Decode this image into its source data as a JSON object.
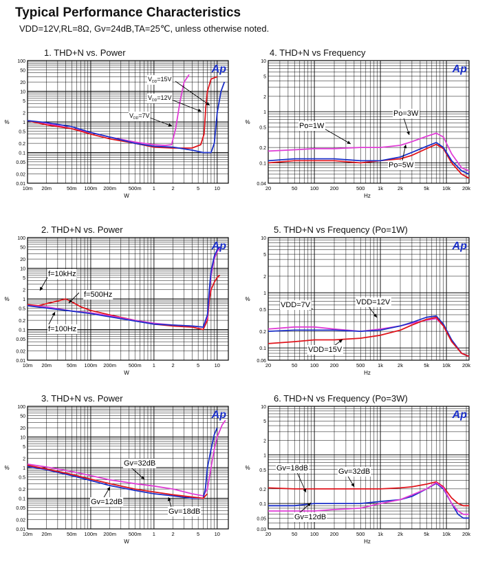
{
  "page": {
    "title": "Typical Performance Characteristics",
    "subtitle": "VDD=12V,RL=8Ω, Gv=24dB,TA=25℃, unless otherwise noted."
  },
  "logo_text": "Ap",
  "colors": {
    "red": "#e0141b",
    "blue": "#1a2fc8",
    "magenta": "#e03cd6",
    "grid": "#000000"
  },
  "charts": [
    {
      "title": "1. THD+N vs. Power",
      "xlabel": "W",
      "ylabel": "%",
      "xticks": [
        "10m",
        "20m",
        "50m",
        "100m",
        "200m",
        "500m",
        "1",
        "2",
        "5",
        "10"
      ],
      "yticks": [
        "100",
        "50",
        "20",
        "10",
        "5",
        "2",
        "1",
        "0.5",
        "0.2",
        "0.1",
        "0.05",
        "0.02",
        "0.01"
      ],
      "annotations": [
        {
          "text": "VDD=15V",
          "sub": "DD",
          "main": "V",
          "rest": "=15V"
        },
        {
          "text": "VDD=12V",
          "sub": "DD",
          "main": "V",
          "rest": "=12V"
        },
        {
          "text": "VDD=7V",
          "sub": "DD",
          "main": "V",
          "rest": "=7V"
        }
      ]
    },
    {
      "title": "4. THD+N vs Frequency",
      "xlabel": "Hz",
      "ylabel": "%",
      "xticks": [
        "20",
        "50",
        "100",
        "200",
        "500",
        "1k",
        "2k",
        "5k",
        "10k",
        "20k"
      ],
      "yticks": [
        "10",
        "5",
        "2",
        "1",
        "0.5",
        "0.2",
        "0.1",
        "0.04"
      ],
      "annotations": [
        {
          "text": "Po=1W"
        },
        {
          "text": "Po=3W"
        },
        {
          "text": "Po=5W"
        }
      ]
    },
    {
      "title": "2. THD+N vs. Power",
      "xlabel": "W",
      "ylabel": "%",
      "xticks": [
        "10m",
        "20m",
        "50m",
        "100m",
        "200m",
        "500m",
        "1",
        "2",
        "5",
        "10"
      ],
      "yticks": [
        "100",
        "50",
        "20",
        "10",
        "5",
        "2",
        "1",
        "0.5",
        "0.2",
        "0.1",
        "0.05",
        "0.02",
        "0.01"
      ],
      "annotations": [
        {
          "text": "f=10kHz"
        },
        {
          "text": "f=500Hz"
        },
        {
          "text": "f=100Hz"
        }
      ]
    },
    {
      "title": "5. THD+N vs Frequency (Po=1W)",
      "xlabel": "Hz",
      "ylabel": "%",
      "xticks": [
        "20",
        "50",
        "100",
        "200",
        "500",
        "1k",
        "2k",
        "5k",
        "10k",
        "20k"
      ],
      "yticks": [
        "10",
        "5",
        "2",
        "1",
        "0.5",
        "0.2",
        "0.1",
        "0.06"
      ],
      "annotations": [
        {
          "text": "VDD=7V"
        },
        {
          "text": "VDD=12V"
        },
        {
          "text": "VDD=15V"
        }
      ]
    },
    {
      "title": "3. THD+N vs. Power",
      "xlabel": "W",
      "ylabel": "%",
      "xticks": [
        "10m",
        "20m",
        "50m",
        "100m",
        "200m",
        "500m",
        "1",
        "2",
        "5",
        "10"
      ],
      "yticks": [
        "100",
        "50",
        "20",
        "10",
        "5",
        "2",
        "1",
        "0.5",
        "0.2",
        "0.1",
        "0.05",
        "0.02",
        "0.01"
      ],
      "annotations": [
        {
          "text": "Gv=32dB"
        },
        {
          "text": "Gv=12dB"
        },
        {
          "text": "Gv=18dB"
        }
      ]
    },
    {
      "title": "6. THD+N vs Frequency (Po=3W)",
      "xlabel": "Hz",
      "ylabel": "%",
      "xticks": [
        "20",
        "50",
        "100",
        "200",
        "500",
        "1k",
        "2k",
        "5k",
        "10k",
        "20k"
      ],
      "yticks": [
        "10",
        "5",
        "2",
        "1",
        "0.5",
        "0.2",
        "0.1",
        "0.05",
        "0.03"
      ],
      "annotations": [
        {
          "text": "Gv=18dB"
        },
        {
          "text": "Gv=32dB"
        },
        {
          "text": "Gv=12dB"
        }
      ]
    }
  ],
  "chart_data": [
    {
      "type": "line",
      "title": "1. THD+N vs. Power",
      "xlabel": "W",
      "ylabel": "%",
      "xscale": "log",
      "yscale": "log",
      "xlim": [
        0.01,
        15
      ],
      "ylim": [
        0.01,
        100
      ],
      "grid": true,
      "series": [
        {
          "name": "VDD=15V",
          "color": "magenta",
          "x": [
            0.01,
            0.02,
            0.05,
            0.1,
            0.2,
            0.5,
            1,
            1.5,
            1.9,
            2.2,
            2.6,
            3,
            3.6
          ],
          "y": [
            1.1,
            0.9,
            0.6,
            0.45,
            0.32,
            0.22,
            0.18,
            0.17,
            0.18,
            0.6,
            5,
            20,
            35
          ]
        },
        {
          "name": "VDD=12V",
          "color": "red",
          "x": [
            0.01,
            0.02,
            0.05,
            0.1,
            0.2,
            0.5,
            1,
            2,
            4,
            5.5,
            6.2,
            6.6,
            7,
            8,
            10
          ],
          "y": [
            1.1,
            0.8,
            0.6,
            0.4,
            0.28,
            0.2,
            0.15,
            0.14,
            0.14,
            0.18,
            0.4,
            3,
            10,
            25,
            30
          ]
        },
        {
          "name": "VDD=7V",
          "color": "blue",
          "x": [
            0.01,
            0.02,
            0.05,
            0.1,
            0.2,
            0.5,
            1,
            2,
            4,
            6,
            8,
            9,
            10,
            11.5,
            13
          ],
          "y": [
            1.1,
            0.95,
            0.7,
            0.45,
            0.32,
            0.2,
            0.16,
            0.15,
            0.12,
            0.1,
            0.1,
            0.2,
            2,
            10,
            20
          ]
        }
      ]
    },
    {
      "type": "line",
      "title": "4. THD+N vs Frequency",
      "xlabel": "Hz",
      "ylabel": "%",
      "xscale": "log",
      "yscale": "log",
      "xlim": [
        20,
        22000
      ],
      "ylim": [
        0.04,
        10
      ],
      "grid": true,
      "series": [
        {
          "name": "Po=1W",
          "color": "magenta",
          "x": [
            20,
            50,
            100,
            200,
            500,
            1000,
            2000,
            3000,
            5000,
            7000,
            9000,
            12000,
            17000,
            22000
          ],
          "y": [
            0.17,
            0.18,
            0.19,
            0.19,
            0.2,
            0.2,
            0.22,
            0.26,
            0.33,
            0.38,
            0.32,
            0.15,
            0.08,
            0.07
          ]
        },
        {
          "name": "Po=3W",
          "color": "red",
          "x": [
            20,
            50,
            100,
            200,
            500,
            1000,
            2000,
            3000,
            5000,
            7000,
            9000,
            12000,
            17000,
            22000
          ],
          "y": [
            0.1,
            0.11,
            0.11,
            0.11,
            0.1,
            0.11,
            0.12,
            0.14,
            0.19,
            0.23,
            0.19,
            0.1,
            0.06,
            0.05
          ]
        },
        {
          "name": "Po=5W",
          "color": "blue",
          "x": [
            20,
            50,
            100,
            200,
            500,
            1000,
            2000,
            3000,
            5000,
            7000,
            9000,
            12000,
            17000,
            22000
          ],
          "y": [
            0.11,
            0.12,
            0.12,
            0.12,
            0.11,
            0.11,
            0.13,
            0.16,
            0.21,
            0.25,
            0.2,
            0.11,
            0.07,
            0.06
          ]
        }
      ]
    },
    {
      "type": "line",
      "title": "2. THD+N vs. Power",
      "xlabel": "W",
      "ylabel": "%",
      "xscale": "log",
      "yscale": "log",
      "xlim": [
        0.01,
        15
      ],
      "ylim": [
        0.01,
        100
      ],
      "grid": true,
      "series": [
        {
          "name": "f=10kHz",
          "color": "red",
          "x": [
            0.01,
            0.015,
            0.02,
            0.03,
            0.04,
            0.05,
            0.07,
            0.1,
            0.2,
            0.5,
            1,
            2,
            4,
            6,
            7,
            7.5,
            8,
            9,
            10,
            11
          ],
          "y": [
            0.65,
            0.6,
            0.7,
            0.85,
            1.0,
            0.8,
            0.55,
            0.42,
            0.3,
            0.2,
            0.15,
            0.13,
            0.12,
            0.1,
            0.2,
            0.9,
            2,
            3.5,
            5,
            6
          ]
        },
        {
          "name": "f=500Hz",
          "color": "magenta",
          "x": [
            0.01,
            0.02,
            0.05,
            0.1,
            0.2,
            0.5,
            1,
            2,
            4,
            6,
            7,
            7.5,
            8,
            9,
            10,
            11
          ],
          "y": [
            0.6,
            0.55,
            0.4,
            0.35,
            0.28,
            0.2,
            0.16,
            0.14,
            0.13,
            0.12,
            0.25,
            1.5,
            6,
            20,
            35,
            45
          ]
        },
        {
          "name": "f=100Hz",
          "color": "blue",
          "x": [
            0.01,
            0.02,
            0.05,
            0.1,
            0.2,
            0.5,
            1,
            2,
            4,
            6,
            7,
            7.5,
            8,
            9,
            10,
            11
          ],
          "y": [
            0.6,
            0.5,
            0.4,
            0.33,
            0.26,
            0.19,
            0.15,
            0.14,
            0.13,
            0.12,
            0.3,
            2,
            8,
            25,
            40,
            50
          ]
        }
      ]
    },
    {
      "type": "line",
      "title": "5. THD+N vs Frequency (Po=1W)",
      "xlabel": "Hz",
      "ylabel": "%",
      "xscale": "log",
      "yscale": "log",
      "xlim": [
        20,
        22000
      ],
      "ylim": [
        0.06,
        10
      ],
      "grid": true,
      "series": [
        {
          "name": "VDD=7V",
          "color": "magenta",
          "x": [
            20,
            50,
            100,
            200,
            500,
            1000,
            2000,
            3000,
            5000,
            7000,
            9000,
            12000,
            17000,
            22000
          ],
          "y": [
            0.22,
            0.24,
            0.24,
            0.22,
            0.2,
            0.22,
            0.25,
            0.28,
            0.32,
            0.34,
            0.25,
            0.14,
            0.08,
            0.07
          ]
        },
        {
          "name": "VDD=12V",
          "color": "blue",
          "x": [
            20,
            50,
            100,
            200,
            500,
            1000,
            2000,
            3000,
            5000,
            7000,
            9000,
            12000,
            17000,
            22000
          ],
          "y": [
            0.2,
            0.21,
            0.21,
            0.21,
            0.2,
            0.21,
            0.25,
            0.29,
            0.36,
            0.38,
            0.27,
            0.14,
            0.08,
            0.07
          ]
        },
        {
          "name": "VDD=15V",
          "color": "red",
          "x": [
            20,
            50,
            100,
            200,
            500,
            1000,
            2000,
            3000,
            5000,
            7000,
            9000,
            12000,
            17000,
            22000
          ],
          "y": [
            0.12,
            0.13,
            0.14,
            0.14,
            0.15,
            0.17,
            0.21,
            0.26,
            0.33,
            0.36,
            0.25,
            0.13,
            0.08,
            0.07
          ]
        }
      ]
    },
    {
      "type": "line",
      "title": "3. THD+N vs. Power",
      "xlabel": "W",
      "ylabel": "%",
      "xscale": "log",
      "yscale": "log",
      "xlim": [
        0.01,
        15
      ],
      "ylim": [
        0.01,
        100
      ],
      "grid": true,
      "series": [
        {
          "name": "Gv=32dB",
          "color": "magenta",
          "x": [
            0.01,
            0.02,
            0.05,
            0.1,
            0.2,
            0.5,
            1,
            2,
            4,
            6,
            7,
            8,
            9,
            10,
            12,
            13.5
          ],
          "y": [
            1.3,
            1.05,
            0.75,
            0.55,
            0.4,
            0.3,
            0.25,
            0.2,
            0.14,
            0.12,
            0.2,
            1,
            4,
            10,
            25,
            35
          ]
        },
        {
          "name": "Gv=12dB",
          "color": "blue",
          "x": [
            0.01,
            0.02,
            0.05,
            0.1,
            0.2,
            0.5,
            1,
            2,
            4,
            6,
            6.5,
            7,
            8,
            9,
            10
          ],
          "y": [
            1.1,
            0.85,
            0.55,
            0.38,
            0.26,
            0.18,
            0.14,
            0.12,
            0.1,
            0.1,
            0.2,
            1,
            4,
            12,
            20
          ]
        },
        {
          "name": "Gv=18dB",
          "color": "red",
          "x": [
            0.01,
            0.02,
            0.05,
            0.1,
            0.2,
            0.5,
            1,
            2,
            4,
            6,
            6.5,
            7
          ],
          "y": [
            1.2,
            0.9,
            0.6,
            0.42,
            0.3,
            0.2,
            0.16,
            0.13,
            0.11,
            0.1,
            0.12,
            0.14
          ]
        }
      ]
    },
    {
      "type": "line",
      "title": "6. THD+N vs Frequency (Po=3W)",
      "xlabel": "Hz",
      "ylabel": "%",
      "xscale": "log",
      "yscale": "log",
      "xlim": [
        20,
        22000
      ],
      "ylim": [
        0.03,
        10
      ],
      "grid": true,
      "series": [
        {
          "name": "Gv=18dB",
          "color": "blue",
          "x": [
            20,
            50,
            100,
            200,
            500,
            1000,
            2000,
            3000,
            5000,
            7000,
            9000,
            12000,
            15000,
            18000,
            22000
          ],
          "y": [
            0.09,
            0.09,
            0.1,
            0.1,
            0.1,
            0.11,
            0.12,
            0.14,
            0.2,
            0.26,
            0.2,
            0.1,
            0.06,
            0.05,
            0.05
          ]
        },
        {
          "name": "Gv=32dB",
          "color": "red",
          "x": [
            20,
            50,
            100,
            200,
            500,
            1000,
            2000,
            3000,
            5000,
            7000,
            9000,
            12000,
            15000,
            18000,
            22000
          ],
          "y": [
            0.21,
            0.2,
            0.2,
            0.2,
            0.2,
            0.2,
            0.21,
            0.22,
            0.25,
            0.28,
            0.22,
            0.13,
            0.1,
            0.09,
            0.09
          ]
        },
        {
          "name": "Gv=12dB",
          "color": "magenta",
          "x": [
            20,
            50,
            100,
            200,
            500,
            1000,
            2000,
            3000,
            5000,
            7000,
            9000,
            12000,
            15000,
            18000,
            22000
          ],
          "y": [
            0.07,
            0.07,
            0.07,
            0.075,
            0.08,
            0.1,
            0.12,
            0.15,
            0.2,
            0.27,
            0.21,
            0.1,
            0.07,
            0.06,
            0.06
          ]
        }
      ]
    }
  ]
}
